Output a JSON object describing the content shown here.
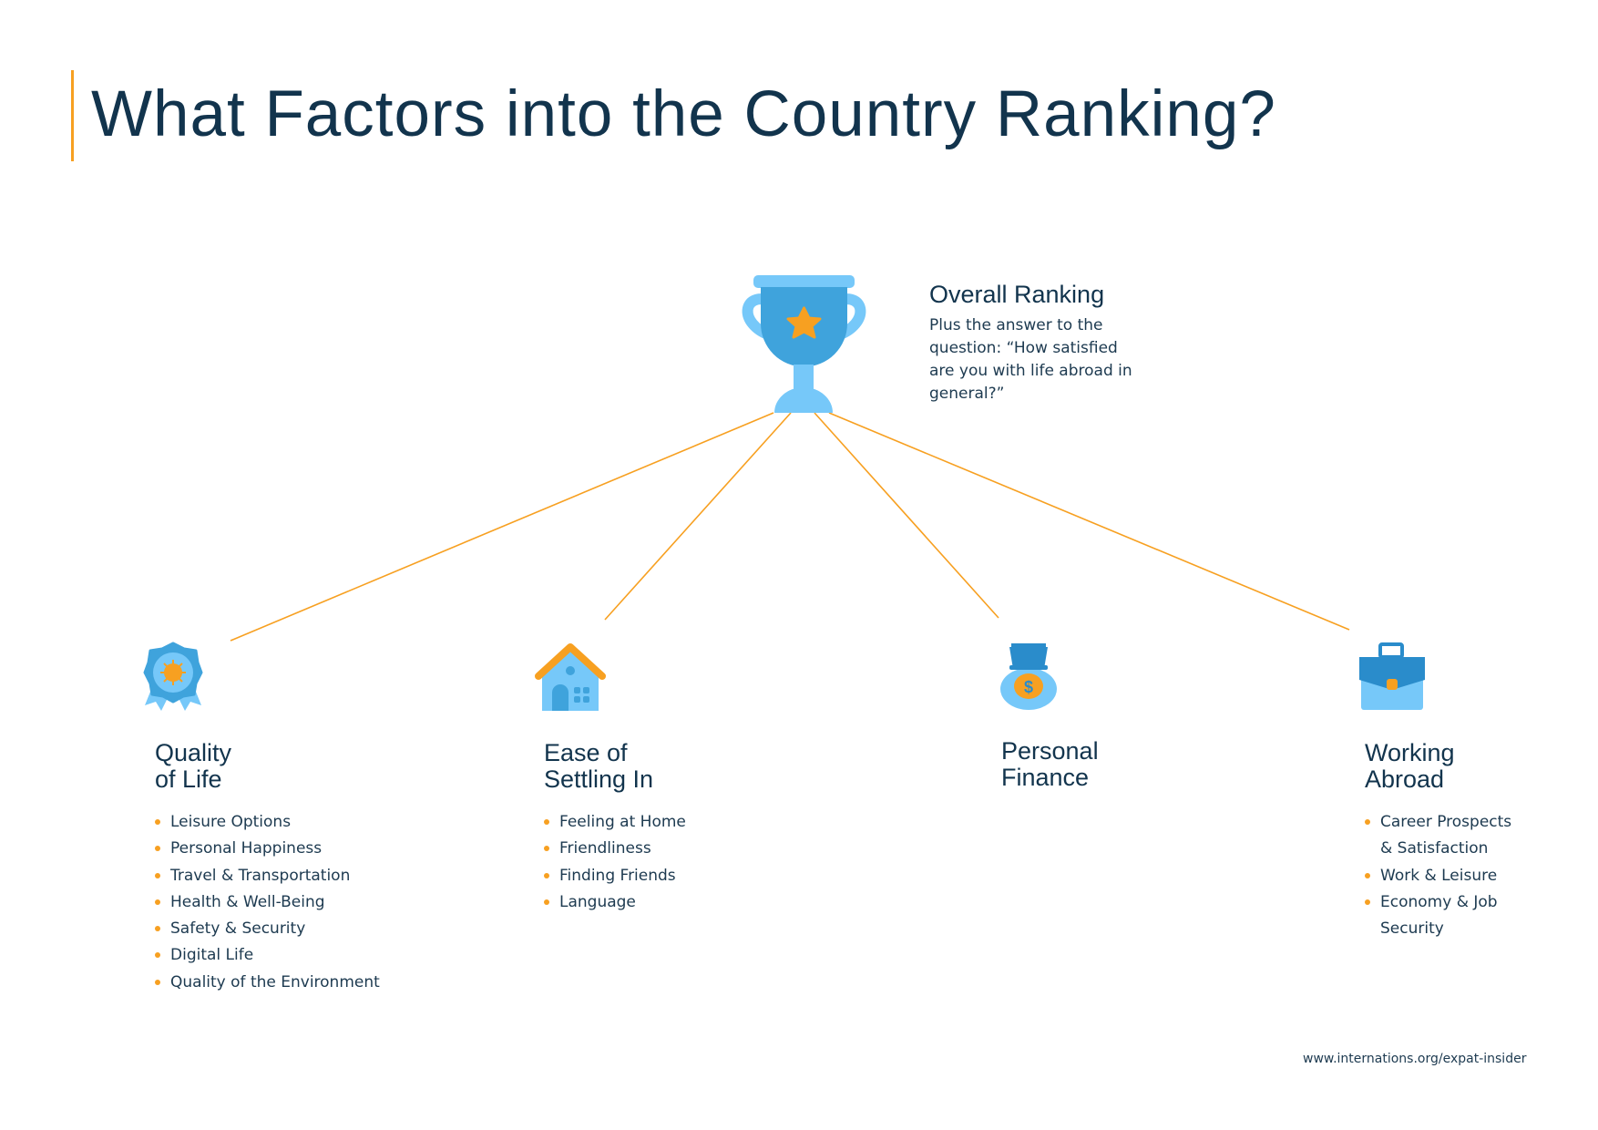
{
  "title": "What Factors into the Country Ranking?",
  "colors": {
    "accent": "#f7a021",
    "text": "#12344d",
    "blue": "#3fa3dc",
    "light_blue": "#76c8f9",
    "dark_blue": "#2a8ccb"
  },
  "overall": {
    "icon": "trophy-icon",
    "title": "Overall Ranking",
    "description": "Plus the answer to the question: “How satisfied are you with life abroad in general?”"
  },
  "categories": [
    {
      "icon": "rosette-icon",
      "heading": "Quality\nof Life",
      "items": [
        "Leisure Options",
        "Personal Happiness",
        "Travel & Transportation",
        "Health & Well-Being",
        "Safety & Security",
        "Digital Life",
        "Quality of the Environment"
      ]
    },
    {
      "icon": "house-icon",
      "heading": "Ease of\nSettling In",
      "items": [
        "Feeling at Home",
        "Friendliness",
        "Finding Friends",
        "Language"
      ]
    },
    {
      "icon": "money-bag-icon",
      "heading": "Personal\nFinance",
      "items": []
    },
    {
      "icon": "briefcase-icon",
      "heading": "Working\nAbroad",
      "items": [
        "Career Prospects\n& Satisfaction",
        "Work & Leisure",
        "Economy & Job\nSecurity"
      ]
    }
  ],
  "footer": "www.internations.org/expat-insider"
}
